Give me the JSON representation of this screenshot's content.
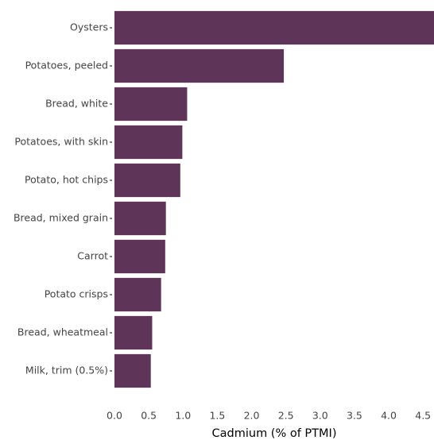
{
  "chart_data": {
    "type": "barh",
    "x_label": "Cadmium (% of PTMI)",
    "categories": [
      "Oysters",
      "Potatoes, peeled",
      "Bread, white",
      "Potatoes, with skin",
      "Potato, hot chips",
      "Bread, mixed grain",
      "Carrot",
      "Potato crisps",
      "Bread, wheatmeal",
      "Milk, trim (0.5%)"
    ],
    "values": [
      4.66,
      2.47,
      1.06,
      0.99,
      0.96,
      0.75,
      0.74,
      0.68,
      0.55,
      0.53
    ],
    "color": "#5e3558",
    "xlim": [
      0,
      4.66
    ],
    "xticks": [
      {
        "value": 0,
        "label": "0.0"
      },
      0.5,
      {
        "value": 1,
        "label": "1.0"
      },
      1.5,
      {
        "value": 2,
        "label": "2.0"
      },
      2.5,
      {
        "value": 3,
        "label": "3.0"
      },
      3.5,
      {
        "value": 4,
        "label": "4.0"
      },
      4.5
    ],
    "grid": false
  }
}
